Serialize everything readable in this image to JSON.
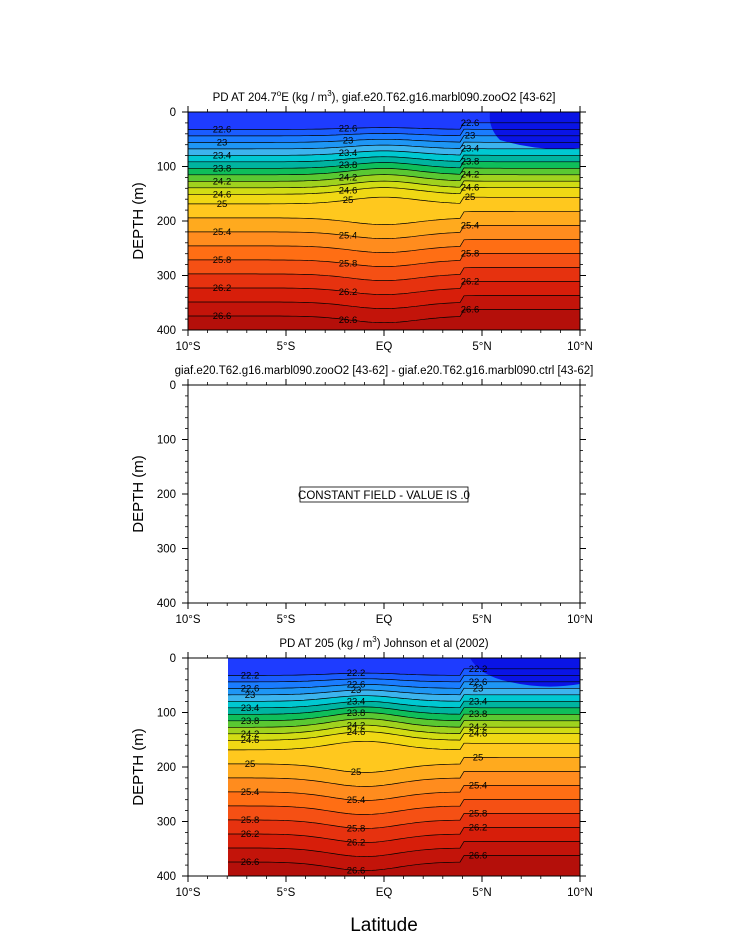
{
  "chart_data": [
    {
      "type": "contour",
      "title_prefix": "PD AT 204.7",
      "title_sup1": "o",
      "title_mid": "E (kg / m",
      "title_sup2": "3",
      "title_suffix": "), giaf.e20.T62.g16.marbl090.zooO2 [43-62]",
      "ylabel": "DEPTH (m)",
      "xlim": [
        -10,
        10
      ],
      "ylim": [
        400,
        0
      ],
      "x_tick_labels": [
        "10°S",
        "5°S",
        "EQ",
        "5°N",
        "10°N"
      ],
      "y_tick_labels": [
        "0",
        "100",
        "200",
        "300",
        "400"
      ],
      "contour_labels": [
        "22.6",
        "23",
        "23.4",
        "23.8",
        "24.2",
        "24.6",
        "25",
        "25.4",
        "25.8",
        "26.2",
        "26.6"
      ]
    },
    {
      "type": "contour",
      "title": "giaf.e20.T62.g16.marbl090.zooO2 [43-62] - giaf.e20.T62.g16.marbl090.ctrl [43-62]",
      "ylabel": "DEPTH (m)",
      "xlim": [
        -10,
        10
      ],
      "ylim": [
        400,
        0
      ],
      "x_tick_labels": [
        "10°S",
        "5°S",
        "EQ",
        "5°N",
        "10°N"
      ],
      "y_tick_labels": [
        "0",
        "100",
        "200",
        "300",
        "400"
      ],
      "annotation": "CONSTANT FIELD - VALUE IS .0"
    },
    {
      "type": "contour",
      "title_prefix": "PD AT 205 (kg / m",
      "title_sup": "3",
      "title_suffix": ") Johnson et al (2002)",
      "ylabel": "DEPTH (m)",
      "xlabel": "Latitude",
      "xlim": [
        -10,
        10
      ],
      "ylim": [
        400,
        0
      ],
      "x_tick_labels": [
        "10°S",
        "5°S",
        "EQ",
        "5°N",
        "10°N"
      ],
      "y_tick_labels": [
        "0",
        "100",
        "200",
        "300",
        "400"
      ],
      "contour_labels": [
        "22.2",
        "22.6",
        "23",
        "23.4",
        "23.8",
        "24.2",
        "24.6",
        "25",
        "25.4",
        "25.8",
        "26.2",
        "26.6"
      ]
    }
  ]
}
